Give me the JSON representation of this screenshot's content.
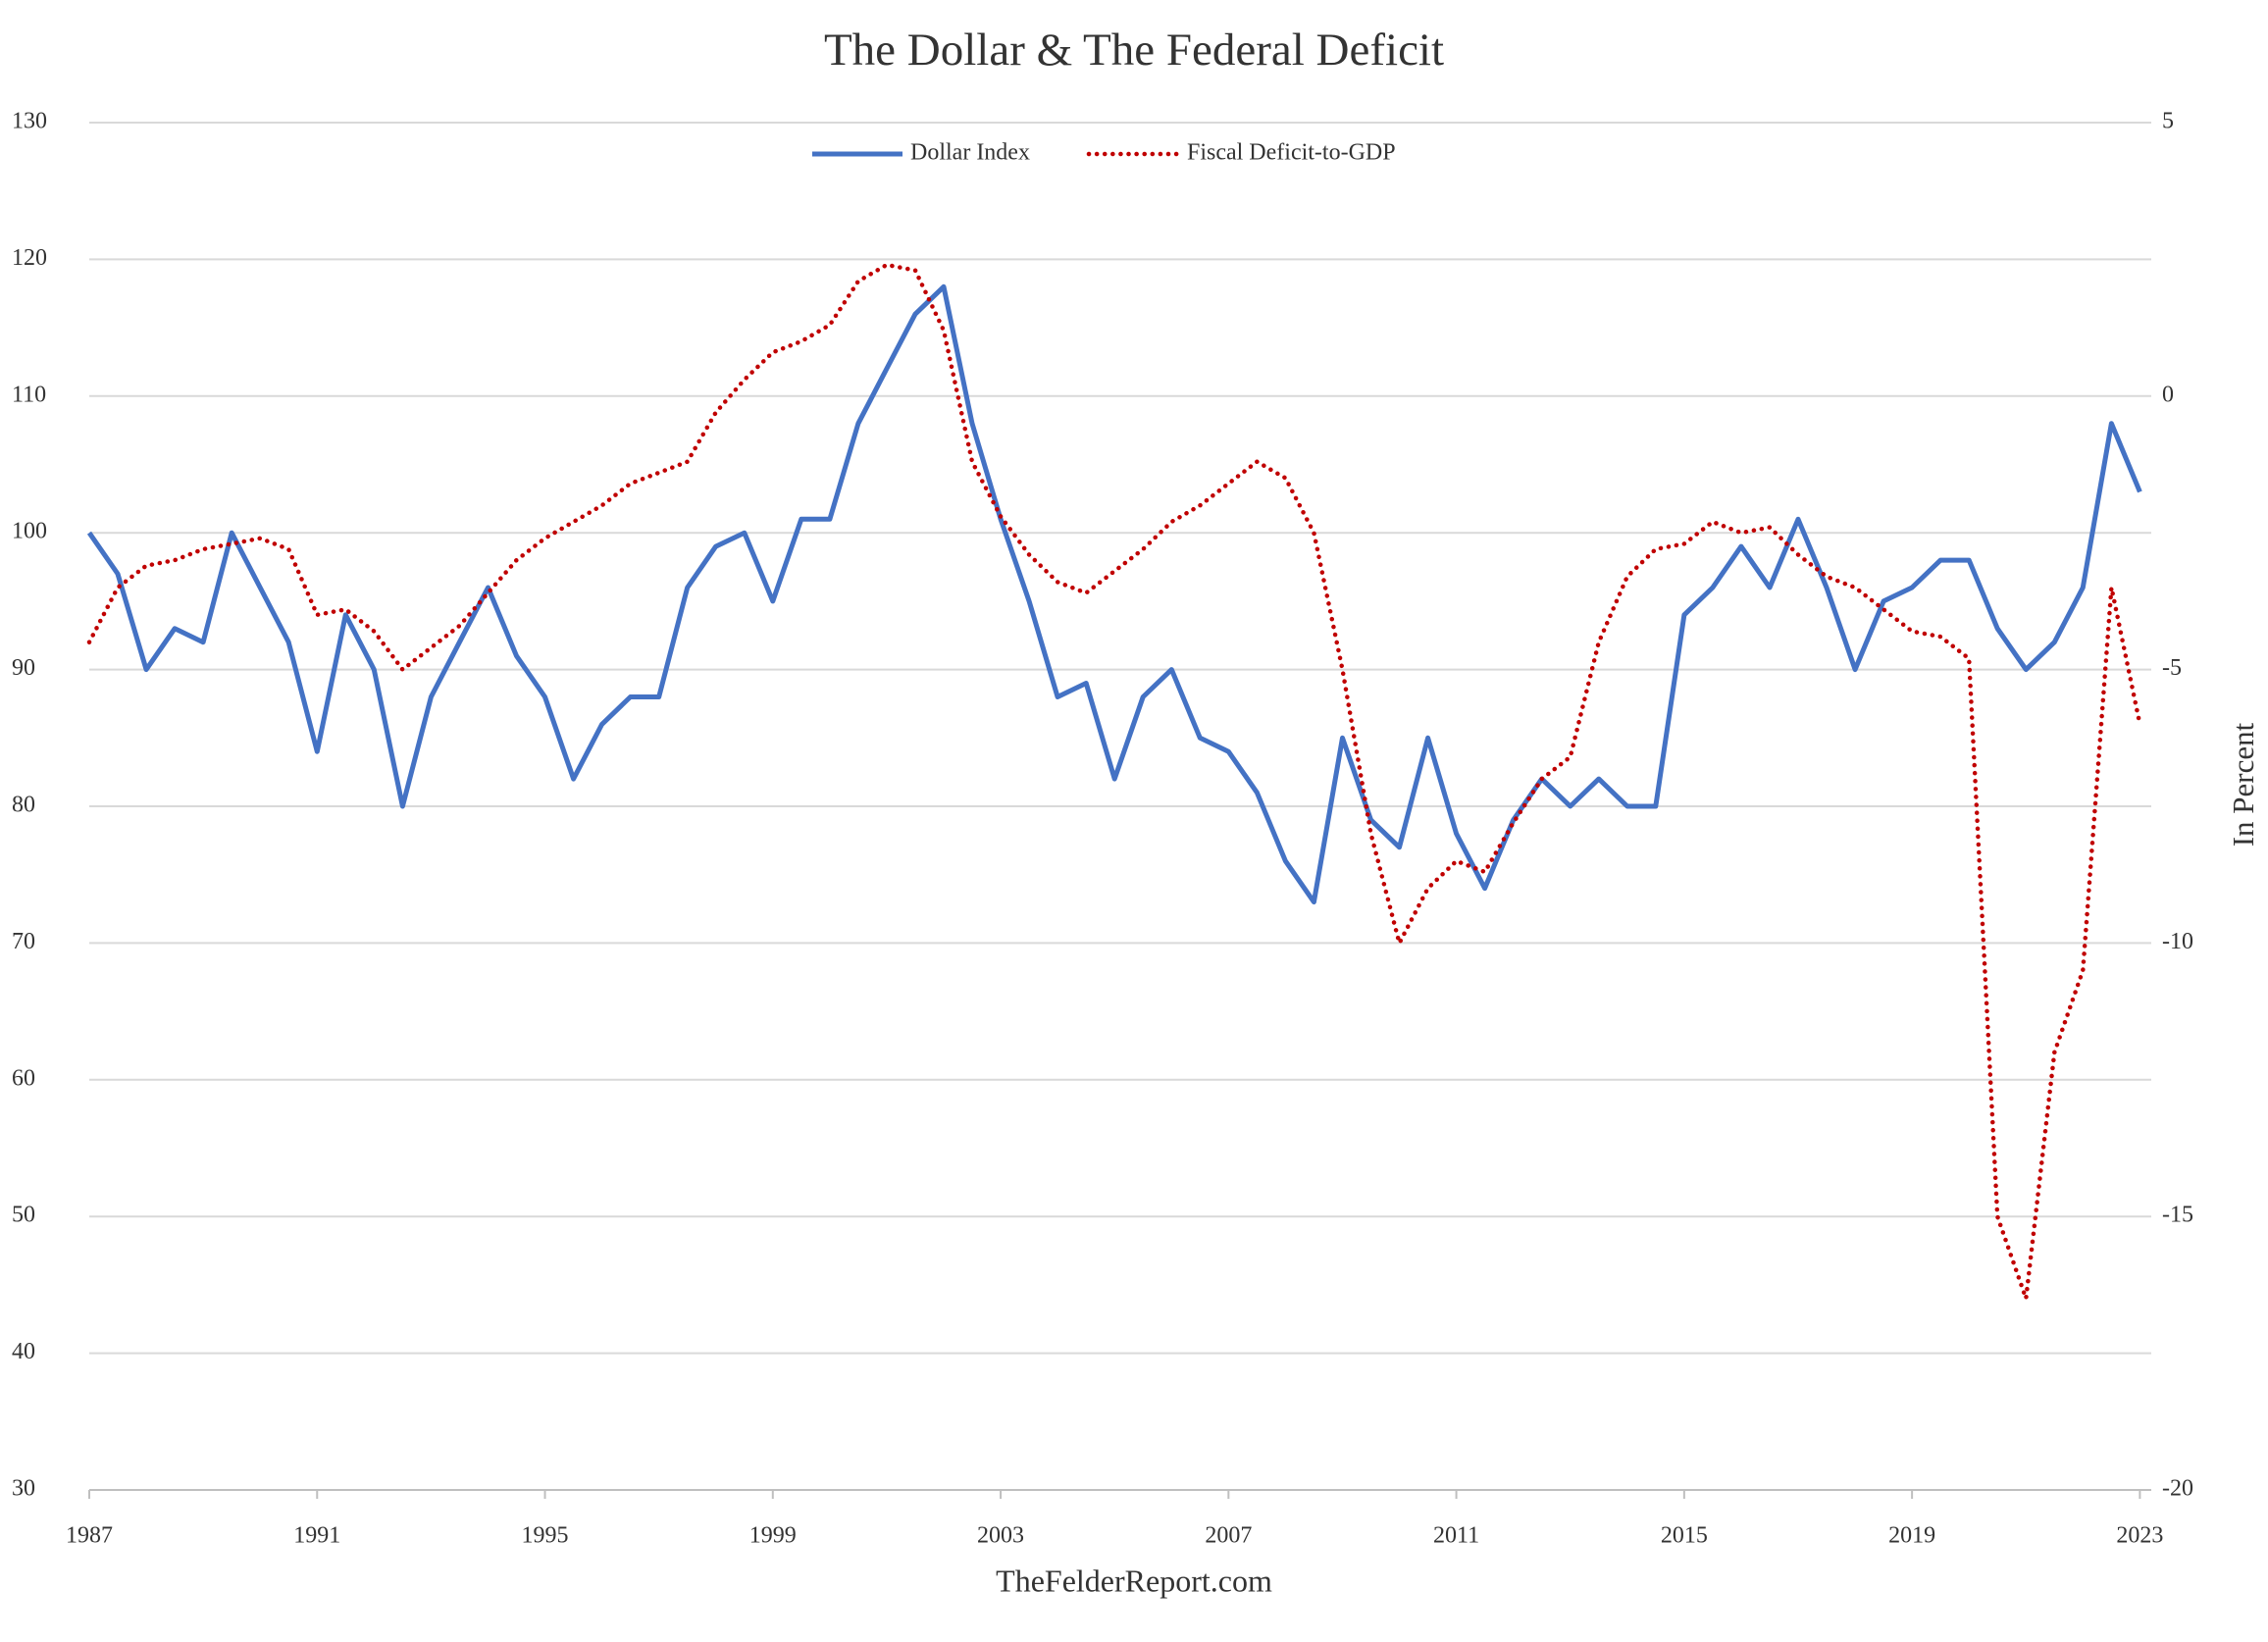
{
  "chart_data": {
    "type": "line",
    "title": "The Dollar & The Federal Deficit",
    "y2label": "In Percent",
    "source": "TheFelderReport.com",
    "x": [
      1987,
      1987.5,
      1988,
      1988.5,
      1989,
      1989.5,
      1990,
      1990.5,
      1991,
      1991.5,
      1992,
      1992.5,
      1993,
      1993.5,
      1994,
      1994.5,
      1995,
      1995.5,
      1996,
      1996.5,
      1997,
      1997.5,
      1998,
      1998.5,
      1999,
      1999.5,
      2000,
      2000.5,
      2001,
      2001.5,
      2002,
      2002.5,
      2003,
      2003.5,
      2004,
      2004.5,
      2005,
      2005.5,
      2006,
      2006.5,
      2007,
      2007.5,
      2008,
      2008.5,
      2009,
      2009.5,
      2010,
      2010.5,
      2011,
      2011.5,
      2012,
      2012.5,
      2013,
      2013.5,
      2014,
      2014.5,
      2015,
      2015.5,
      2016,
      2016.5,
      2017,
      2017.5,
      2018,
      2018.5,
      2019,
      2019.5,
      2020,
      2020.5,
      2021,
      2021.5,
      2022,
      2022.5,
      2023
    ],
    "series": [
      {
        "name": "Dollar Index",
        "color": "#4472c4",
        "style": "solid",
        "values": [
          100,
          97,
          90,
          93,
          92,
          100,
          96,
          92,
          84,
          94,
          90,
          80,
          88,
          92,
          96,
          91,
          88,
          82,
          86,
          88,
          88,
          96,
          99,
          100,
          95,
          101,
          101,
          108,
          112,
          116,
          118,
          108,
          101,
          95,
          88,
          89,
          82,
          88,
          90,
          85,
          84,
          81,
          76,
          73,
          85,
          79,
          77,
          85,
          78,
          74,
          79,
          82,
          80,
          82,
          80,
          80,
          94,
          96,
          99,
          96,
          101,
          96,
          90,
          95,
          96,
          98,
          98,
          93,
          90,
          92,
          96,
          108,
          103
        ]
      },
      {
        "name": "Fiscal Deficit-to-GDP",
        "color": "#c00000",
        "style": "dotted",
        "axis": "y2",
        "values": [
          -4.5,
          -3.5,
          -3.1,
          -3.0,
          -2.8,
          -2.7,
          -2.6,
          -2.8,
          -4.0,
          -3.9,
          -4.3,
          -5.0,
          -4.6,
          -4.2,
          -3.6,
          -3.0,
          -2.6,
          -2.3,
          -2.0,
          -1.6,
          -1.4,
          -1.2,
          -0.3,
          0.3,
          0.8,
          1.0,
          1.3,
          2.1,
          2.4,
          2.3,
          1.2,
          -1.2,
          -2.2,
          -2.9,
          -3.4,
          -3.6,
          -3.2,
          -2.8,
          -2.3,
          -2.0,
          -1.6,
          -1.2,
          -1.5,
          -2.5,
          -5.0,
          -8.0,
          -10.0,
          -9.0,
          -8.5,
          -8.7,
          -7.8,
          -7.0,
          -6.6,
          -4.5,
          -3.3,
          -2.8,
          -2.7,
          -2.3,
          -2.5,
          -2.4,
          -2.9,
          -3.3,
          -3.5,
          -3.9,
          -4.3,
          -4.4,
          -4.8,
          -15.0,
          -16.5,
          -12.0,
          -10.5,
          -3.5,
          -6.0
        ]
      }
    ],
    "xlim": [
      1987,
      2023.2
    ],
    "xticks": [
      1987,
      1991,
      1995,
      1999,
      2003,
      2007,
      2011,
      2015,
      2019,
      2023
    ],
    "ylim": [
      30,
      130
    ],
    "yticks": [
      30,
      40,
      50,
      60,
      70,
      80,
      90,
      100,
      110,
      120,
      130
    ],
    "y2lim": [
      -20,
      5
    ],
    "y2ticks": [
      -20,
      -15,
      -10,
      -5,
      0,
      5
    ],
    "grid": true,
    "legend": "top"
  }
}
